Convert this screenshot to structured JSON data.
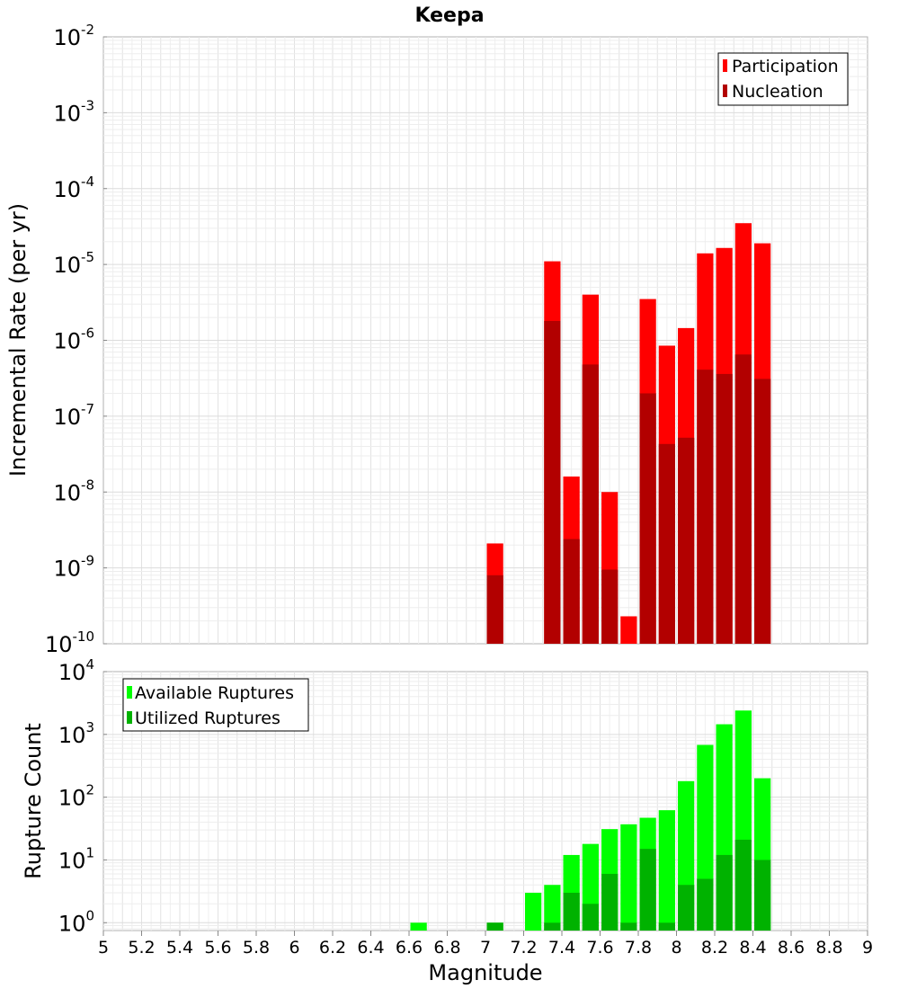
{
  "chart_data": [
    {
      "type": "bar",
      "title": "Keepa",
      "xlabel": "",
      "ylabel": "Incremental Rate (per yr)",
      "xlim": [
        5,
        9
      ],
      "ylim": [
        1e-10,
        0.01
      ],
      "yscale": "log",
      "bar_width": 0.1,
      "legend": "top-right",
      "grid": true,
      "y_ticks": [
        {
          "base": "10",
          "exp": "-2",
          "value": 0.01
        },
        {
          "base": "10",
          "exp": "-3",
          "value": 0.001
        },
        {
          "base": "10",
          "exp": "-4",
          "value": 0.0001
        },
        {
          "base": "10",
          "exp": "-5",
          "value": 1e-05
        },
        {
          "base": "10",
          "exp": "-6",
          "value": 1e-06
        },
        {
          "base": "10",
          "exp": "-7",
          "value": 1e-07
        },
        {
          "base": "10",
          "exp": "-8",
          "value": 1e-08
        },
        {
          "base": "10",
          "exp": "-9",
          "value": 1e-09
        },
        {
          "base": "10",
          "exp": "-10",
          "value": 1e-10
        }
      ],
      "series": [
        {
          "name": "Participation",
          "color": "#ff0000",
          "points": [
            [
              7.05,
              2.1e-09
            ],
            [
              7.35,
              1.1e-05
            ],
            [
              7.45,
              1.6e-08
            ],
            [
              7.55,
              4e-06
            ],
            [
              7.65,
              1e-08
            ],
            [
              7.75,
              2.3e-10
            ],
            [
              7.85,
              3.5e-06
            ],
            [
              7.95,
              8.5e-07
            ],
            [
              8.05,
              1.45e-06
            ],
            [
              8.15,
              1.4e-05
            ],
            [
              8.25,
              1.65e-05
            ],
            [
              8.35,
              3.5e-05
            ],
            [
              8.45,
              1.9e-05
            ]
          ]
        },
        {
          "name": "Nucleation",
          "color": "#b20000",
          "points": [
            [
              7.05,
              8e-10
            ],
            [
              7.35,
              1.8e-06
            ],
            [
              7.45,
              2.4e-09
            ],
            [
              7.55,
              4.8e-07
            ],
            [
              7.65,
              9.5e-10
            ],
            [
              7.85,
              2e-07
            ],
            [
              7.95,
              4.3e-08
            ],
            [
              8.05,
              5.2e-08
            ],
            [
              8.15,
              4.1e-07
            ],
            [
              8.25,
              3.6e-07
            ],
            [
              8.35,
              6.5e-07
            ],
            [
              8.45,
              3.1e-07
            ]
          ]
        }
      ]
    },
    {
      "type": "bar",
      "title": "",
      "xlabel": "Magnitude",
      "ylabel": "Rupture Count",
      "xlim": [
        5,
        9
      ],
      "ylim": [
        0.75,
        10000
      ],
      "yscale": "log",
      "bar_width": 0.1,
      "legend": "top-left",
      "grid": true,
      "y_ticks": [
        {
          "base": "10",
          "exp": "4",
          "value": 10000
        },
        {
          "base": "10",
          "exp": "3",
          "value": 1000
        },
        {
          "base": "10",
          "exp": "2",
          "value": 100
        },
        {
          "base": "10",
          "exp": "1",
          "value": 10
        },
        {
          "base": "10",
          "exp": "0",
          "value": 1
        }
      ],
      "x_tick_labels": [
        "5",
        "5.2",
        "5.4",
        "5.6",
        "5.8",
        "6",
        "6.2",
        "6.4",
        "6.6",
        "6.8",
        "7",
        "7.2",
        "7.4",
        "7.6",
        "7.8",
        "8",
        "8.2",
        "8.4",
        "8.6",
        "8.8",
        "9"
      ],
      "series": [
        {
          "name": "Available Ruptures",
          "color": "#00ff00",
          "points": [
            [
              6.65,
              1
            ],
            [
              7.05,
              1
            ],
            [
              7.25,
              3
            ],
            [
              7.35,
              4
            ],
            [
              7.45,
              12
            ],
            [
              7.55,
              18
            ],
            [
              7.65,
              31
            ],
            [
              7.75,
              37
            ],
            [
              7.85,
              47
            ],
            [
              7.95,
              62
            ],
            [
              8.05,
              180
            ],
            [
              8.15,
              680
            ],
            [
              8.25,
              1450
            ],
            [
              8.35,
              2400
            ],
            [
              8.45,
              200
            ]
          ]
        },
        {
          "name": "Utilized Ruptures",
          "color": "#00b200",
          "points": [
            [
              7.05,
              1
            ],
            [
              7.35,
              1
            ],
            [
              7.45,
              3
            ],
            [
              7.55,
              2
            ],
            [
              7.65,
              6
            ],
            [
              7.75,
              1
            ],
            [
              7.85,
              15
            ],
            [
              7.95,
              1
            ],
            [
              8.05,
              4
            ],
            [
              8.15,
              5
            ],
            [
              8.25,
              12
            ],
            [
              8.35,
              21
            ],
            [
              8.45,
              10
            ]
          ]
        }
      ]
    }
  ]
}
